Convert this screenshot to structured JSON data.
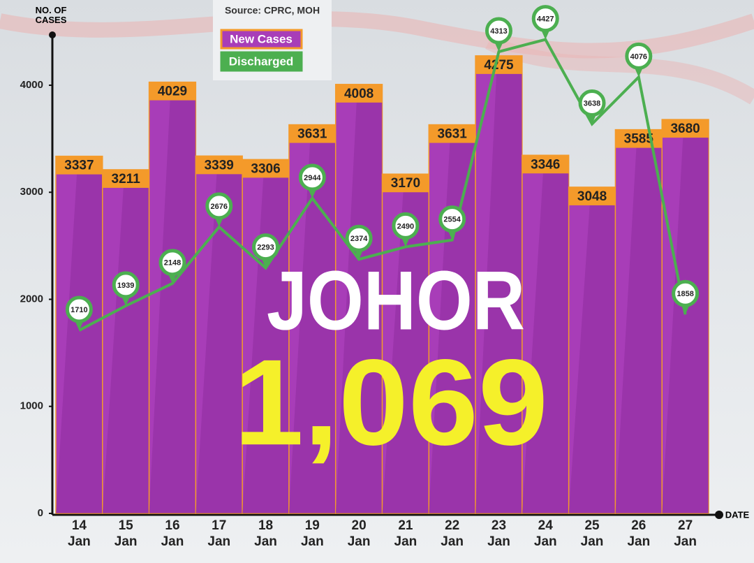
{
  "chart_data": {
    "type": "bar-line",
    "source": "Source: CPRC, MOH",
    "y_label": "NO. OF CASES",
    "x_label": "DATE",
    "annotations": [
      "JOHOR",
      "1,069"
    ],
    "categories": [
      "14 Jan",
      "15 Jan",
      "16 Jan",
      "17 Jan",
      "18 Jan",
      "19 Jan",
      "20 Jan",
      "21 Jan",
      "22 Jan",
      "23 Jan",
      "24 Jan",
      "25 Jan",
      "26 Jan",
      "27 Jan"
    ],
    "series": [
      {
        "name": "New Cases",
        "type": "bar",
        "color": "#a83db8",
        "cap_color": "#f49a2a",
        "values": [
          3337,
          3211,
          4029,
          3339,
          3306,
          3631,
          4008,
          3170,
          3631,
          4275,
          3346,
          3048,
          3585,
          3680
        ]
      },
      {
        "name": "Discharged",
        "type": "line",
        "color": "#4caf50",
        "values": [
          1710,
          1939,
          2148,
          2676,
          2293,
          2944,
          2374,
          2490,
          2554,
          4313,
          4427,
          3638,
          4076,
          1858
        ]
      }
    ],
    "ylim": [
      0,
      4470
    ],
    "yticks": [
      0,
      1000,
      2000,
      3000,
      4000
    ]
  }
}
